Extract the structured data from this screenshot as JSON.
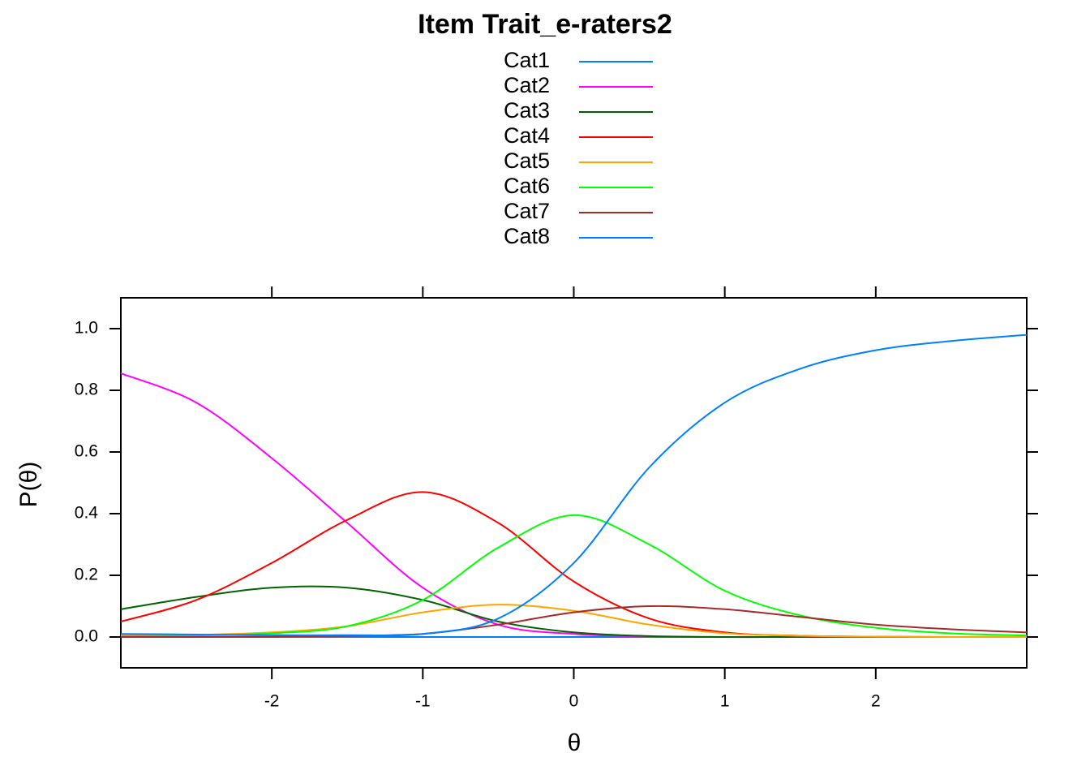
{
  "chart_data": {
    "type": "line",
    "title": "Item Trait_e-raters2",
    "xlabel": "θ",
    "ylabel": "P(θ)",
    "legend": "top",
    "x": [
      -3,
      -2.5,
      -2,
      -1.5,
      -1,
      -0.5,
      0,
      0.5,
      1,
      1.5,
      2,
      2.5,
      3
    ],
    "series": [
      {
        "name": "Cat1",
        "color": "#0080ff",
        "values": [
          0,
          0,
          0,
          0,
          0,
          0,
          0,
          0,
          0,
          0,
          0,
          0,
          0
        ]
      },
      {
        "name": "Cat2",
        "color": "#ff00ff",
        "values": [
          0.855,
          0.76,
          0.58,
          0.37,
          0.16,
          0.04,
          0.01,
          0.002,
          0,
          0,
          0,
          0,
          0
        ]
      },
      {
        "name": "Cat3",
        "color": "#006400",
        "values": [
          0.09,
          0.13,
          0.16,
          0.16,
          0.12,
          0.05,
          0.015,
          0.003,
          0,
          0,
          0,
          0,
          0
        ]
      },
      {
        "name": "Cat4",
        "color": "#ff0000",
        "values": [
          0.05,
          0.12,
          0.24,
          0.38,
          0.47,
          0.37,
          0.18,
          0.06,
          0.015,
          0.004,
          0.001,
          0,
          0
        ]
      },
      {
        "name": "Cat5",
        "color": "#ffa500",
        "values": [
          0.005,
          0.007,
          0.015,
          0.035,
          0.08,
          0.105,
          0.085,
          0.04,
          0.012,
          0.004,
          0.001,
          0,
          0
        ]
      },
      {
        "name": "Cat6",
        "color": "#00ff00",
        "values": [
          0.002,
          0.005,
          0.012,
          0.035,
          0.12,
          0.29,
          0.395,
          0.3,
          0.15,
          0.07,
          0.03,
          0.012,
          0.005
        ]
      },
      {
        "name": "Cat7",
        "color": "#a52a2a",
        "values": [
          0,
          0,
          0.001,
          0.004,
          0.01,
          0.04,
          0.08,
          0.1,
          0.09,
          0.065,
          0.04,
          0.025,
          0.015
        ]
      },
      {
        "name": "Cat8",
        "color": "#0080ff",
        "values": [
          0.01,
          0.008,
          0.006,
          0.006,
          0.01,
          0.06,
          0.24,
          0.55,
          0.76,
          0.87,
          0.93,
          0.96,
          0.98
        ]
      }
    ],
    "xlim": [
      -3,
      3
    ],
    "ylim": [
      -0.1,
      1.1
    ],
    "xticks": [
      -2,
      -1,
      0,
      1,
      2
    ],
    "yticks": [
      {
        "value": 0,
        "label": "0.0"
      },
      {
        "value": 0.2,
        "label": "0.2"
      },
      {
        "value": 0.4,
        "label": "0.4"
      },
      {
        "value": 0.6,
        "label": "0.6"
      },
      {
        "value": 0.8,
        "label": "0.8"
      },
      {
        "value": 1,
        "label": "1.0"
      }
    ]
  }
}
